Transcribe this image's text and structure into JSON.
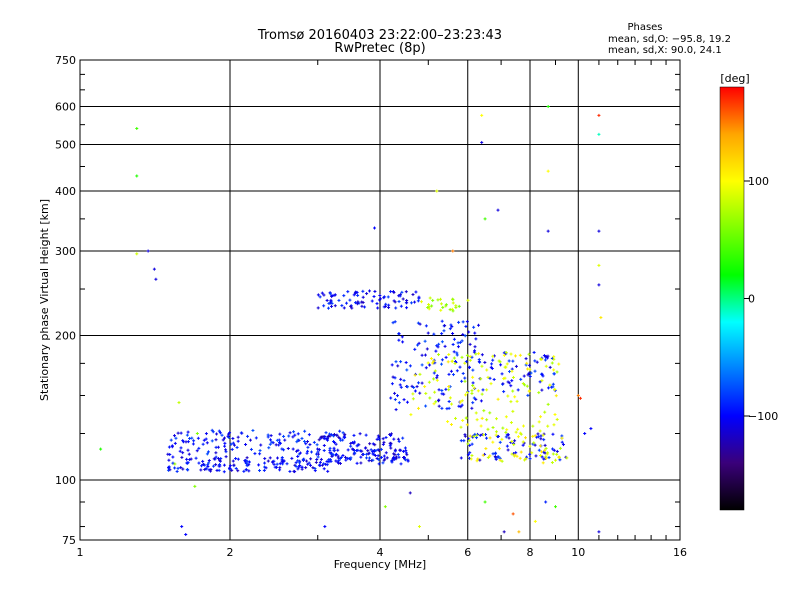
{
  "chart_data": {
    "type": "scatter",
    "title": "Tromsø 20160403 23:22:00–23:23:43",
    "subtitle": "RwPretec (8p)",
    "xlabel": "Frequency [MHz]",
    "ylabel": "Stationary phase Virtual Height [km]",
    "xscale": "log",
    "yscale": "log",
    "xlim": [
      1,
      16
    ],
    "ylim": [
      75,
      750
    ],
    "grid": true,
    "x_ticks": [
      1,
      2,
      4,
      6,
      8,
      10,
      16
    ],
    "x_tick_labels": [
      "1",
      "2",
      "4",
      "6",
      "8",
      "10",
      "16"
    ],
    "y_ticks": [
      75,
      100,
      200,
      300,
      400,
      500,
      600,
      750
    ],
    "y_tick_labels": [
      "75",
      "100",
      "200",
      "300",
      "400",
      "500",
      "600",
      "750"
    ],
    "legend": {
      "title": "Phases",
      "lines": [
        "mean, sd,O: −95.8, 19.2",
        "mean, sd,X:  90.0, 24.1"
      ],
      "placement": "top-right"
    },
    "colorbar": {
      "label": "[deg]",
      "range": [
        -180,
        180
      ],
      "ticks": [
        -100,
        0,
        100
      ],
      "tick_labels": [
        "−100",
        "0",
        "100"
      ],
      "colors": [
        "#000000",
        "#3a007a",
        "#0000ff",
        "#0080ff",
        "#00ffff",
        "#00ff00",
        "#80ff00",
        "#ffff00",
        "#ffa500",
        "#ff0000"
      ]
    },
    "series": [
      {
        "mode": "O",
        "clusters": [
          {
            "f": [
              1.5,
              3.2
            ],
            "h": [
              104,
              112
            ],
            "phase": -100,
            "n": 160
          },
          {
            "f": [
              1.5,
              3.4
            ],
            "h": [
              113,
              127
            ],
            "phase": -95,
            "n": 150
          },
          {
            "f": [
              3.2,
              4.6
            ],
            "h": [
              108,
              116
            ],
            "phase": -100,
            "n": 90
          },
          {
            "f": [
              3.0,
              4.5
            ],
            "h": [
              115,
              125
            ],
            "phase": -105,
            "n": 70
          },
          {
            "f": [
              3.0,
              4.8
            ],
            "h": [
              228,
              248
            ],
            "phase": -100,
            "n": 90
          },
          {
            "f": [
              4.2,
              6.5
            ],
            "h": [
              140,
              215
            ],
            "phase": -95,
            "n": 150
          },
          {
            "f": [
              5.8,
              9.5
            ],
            "h": [
              110,
              125
            ],
            "phase": -100,
            "n": 80
          },
          {
            "f": [
              6.5,
              9.0
            ],
            "h": [
              150,
              185
            ],
            "phase": -95,
            "n": 60
          }
        ]
      },
      {
        "mode": "X",
        "clusters": [
          {
            "f": [
              4.6,
              9.2
            ],
            "h": [
              125,
              185
            ],
            "phase": 90,
            "n": 140
          },
          {
            "f": [
              6.0,
              9.5
            ],
            "h": [
              108,
              125
            ],
            "phase": 95,
            "n": 60
          },
          {
            "f": [
              4.8,
              6.2
            ],
            "h": [
              225,
              240
            ],
            "phase": 75,
            "n": 25
          }
        ]
      }
    ],
    "scattered_points": [
      {
        "x": 1.1,
        "y": 116,
        "phase": 30
      },
      {
        "x": 1.3,
        "y": 540,
        "phase": 40
      },
      {
        "x": 1.3,
        "y": 430,
        "phase": 30
      },
      {
        "x": 1.3,
        "y": 296,
        "phase": 85
      },
      {
        "x": 1.37,
        "y": 300,
        "phase": -110
      },
      {
        "x": 1.41,
        "y": 275,
        "phase": -110
      },
      {
        "x": 1.42,
        "y": 262,
        "phase": -110
      },
      {
        "x": 1.55,
        "y": 108,
        "phase": 70
      },
      {
        "x": 1.6,
        "y": 80,
        "phase": -100
      },
      {
        "x": 1.63,
        "y": 77,
        "phase": -100
      },
      {
        "x": 1.7,
        "y": 97,
        "phase": 60
      },
      {
        "x": 1.58,
        "y": 145,
        "phase": 80
      },
      {
        "x": 1.72,
        "y": 125,
        "phase": 60
      },
      {
        "x": 3.1,
        "y": 80,
        "phase": -100
      },
      {
        "x": 3.9,
        "y": 335,
        "phase": -100
      },
      {
        "x": 4.1,
        "y": 88,
        "phase": 60
      },
      {
        "x": 4.6,
        "y": 94,
        "phase": -120
      },
      {
        "x": 4.8,
        "y": 80,
        "phase": 90
      },
      {
        "x": 5.2,
        "y": 400,
        "phase": 90
      },
      {
        "x": 5.6,
        "y": 300,
        "phase": 150
      },
      {
        "x": 6.4,
        "y": 575,
        "phase": 100
      },
      {
        "x": 6.4,
        "y": 505,
        "phase": -110
      },
      {
        "x": 6.5,
        "y": 350,
        "phase": 40
      },
      {
        "x": 6.9,
        "y": 365,
        "phase": -110
      },
      {
        "x": 6.5,
        "y": 90,
        "phase": 40
      },
      {
        "x": 7.4,
        "y": 85,
        "phase": 160
      },
      {
        "x": 7.1,
        "y": 78,
        "phase": -120
      },
      {
        "x": 8.2,
        "y": 82,
        "phase": 100
      },
      {
        "x": 8.7,
        "y": 330,
        "phase": -110
      },
      {
        "x": 8.7,
        "y": 440,
        "phase": 100
      },
      {
        "x": 8.7,
        "y": 600,
        "phase": 30
      },
      {
        "x": 8.6,
        "y": 90,
        "phase": -90
      },
      {
        "x": 9.0,
        "y": 88,
        "phase": 40
      },
      {
        "x": 10.0,
        "y": 150,
        "phase": 150
      },
      {
        "x": 10.1,
        "y": 148,
        "phase": 170
      },
      {
        "x": 11.0,
        "y": 575,
        "phase": 170
      },
      {
        "x": 11.0,
        "y": 525,
        "phase": -10
      },
      {
        "x": 11.0,
        "y": 330,
        "phase": -110
      },
      {
        "x": 11.0,
        "y": 280,
        "phase": 90
      },
      {
        "x": 11.0,
        "y": 255,
        "phase": -110
      },
      {
        "x": 11.1,
        "y": 218,
        "phase": 110
      },
      {
        "x": 11.0,
        "y": 78,
        "phase": -110
      },
      {
        "x": 7.6,
        "y": 78,
        "phase": 130
      },
      {
        "x": 10.6,
        "y": 128,
        "phase": -100
      },
      {
        "x": 10.3,
        "y": 125,
        "phase": -100
      }
    ]
  }
}
